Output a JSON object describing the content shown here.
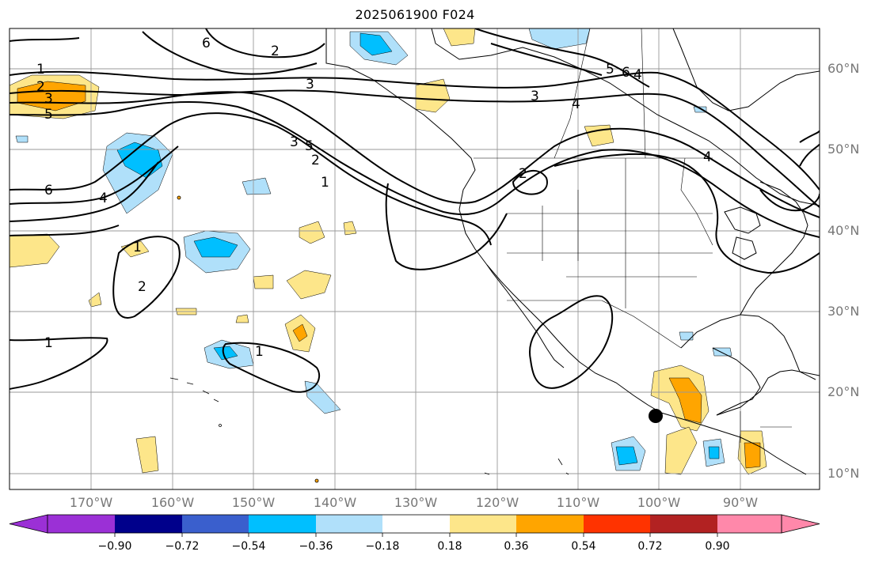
{
  "title": "2025061900 F024",
  "lat_labels": [
    "60°N",
    "50°N",
    "40°N",
    "30°N",
    "20°N",
    "10°N"
  ],
  "lon_labels": [
    "170°W",
    "160°W",
    "150°W",
    "140°W",
    "130°W",
    "120°W",
    "110°W",
    "100°W",
    "90°W"
  ],
  "contour_labels": [
    "1",
    "2",
    "3",
    "5",
    "6",
    "4",
    "2",
    "3",
    "4",
    "6",
    "3",
    "4",
    "5",
    "1",
    "2",
    "1",
    "2",
    "1",
    "4",
    "2",
    "1",
    "3",
    "5",
    "6"
  ],
  "colorbar": {
    "ticks": [
      "−0.90",
      "−0.72",
      "−0.54",
      "−0.36",
      "−0.18",
      "0.18",
      "0.36",
      "0.54",
      "0.72",
      "0.90"
    ],
    "colors": [
      "#9b30d6",
      "#00008b",
      "#3a5fcd",
      "#00bfff",
      "#b0e0fa",
      "#ffffff",
      "#fde68a",
      "#ffa500",
      "#ff3300",
      "#b22222",
      "#ff88aa"
    ]
  },
  "marker": {
    "name": "black-dot",
    "lon": -100,
    "lat": 17
  }
}
